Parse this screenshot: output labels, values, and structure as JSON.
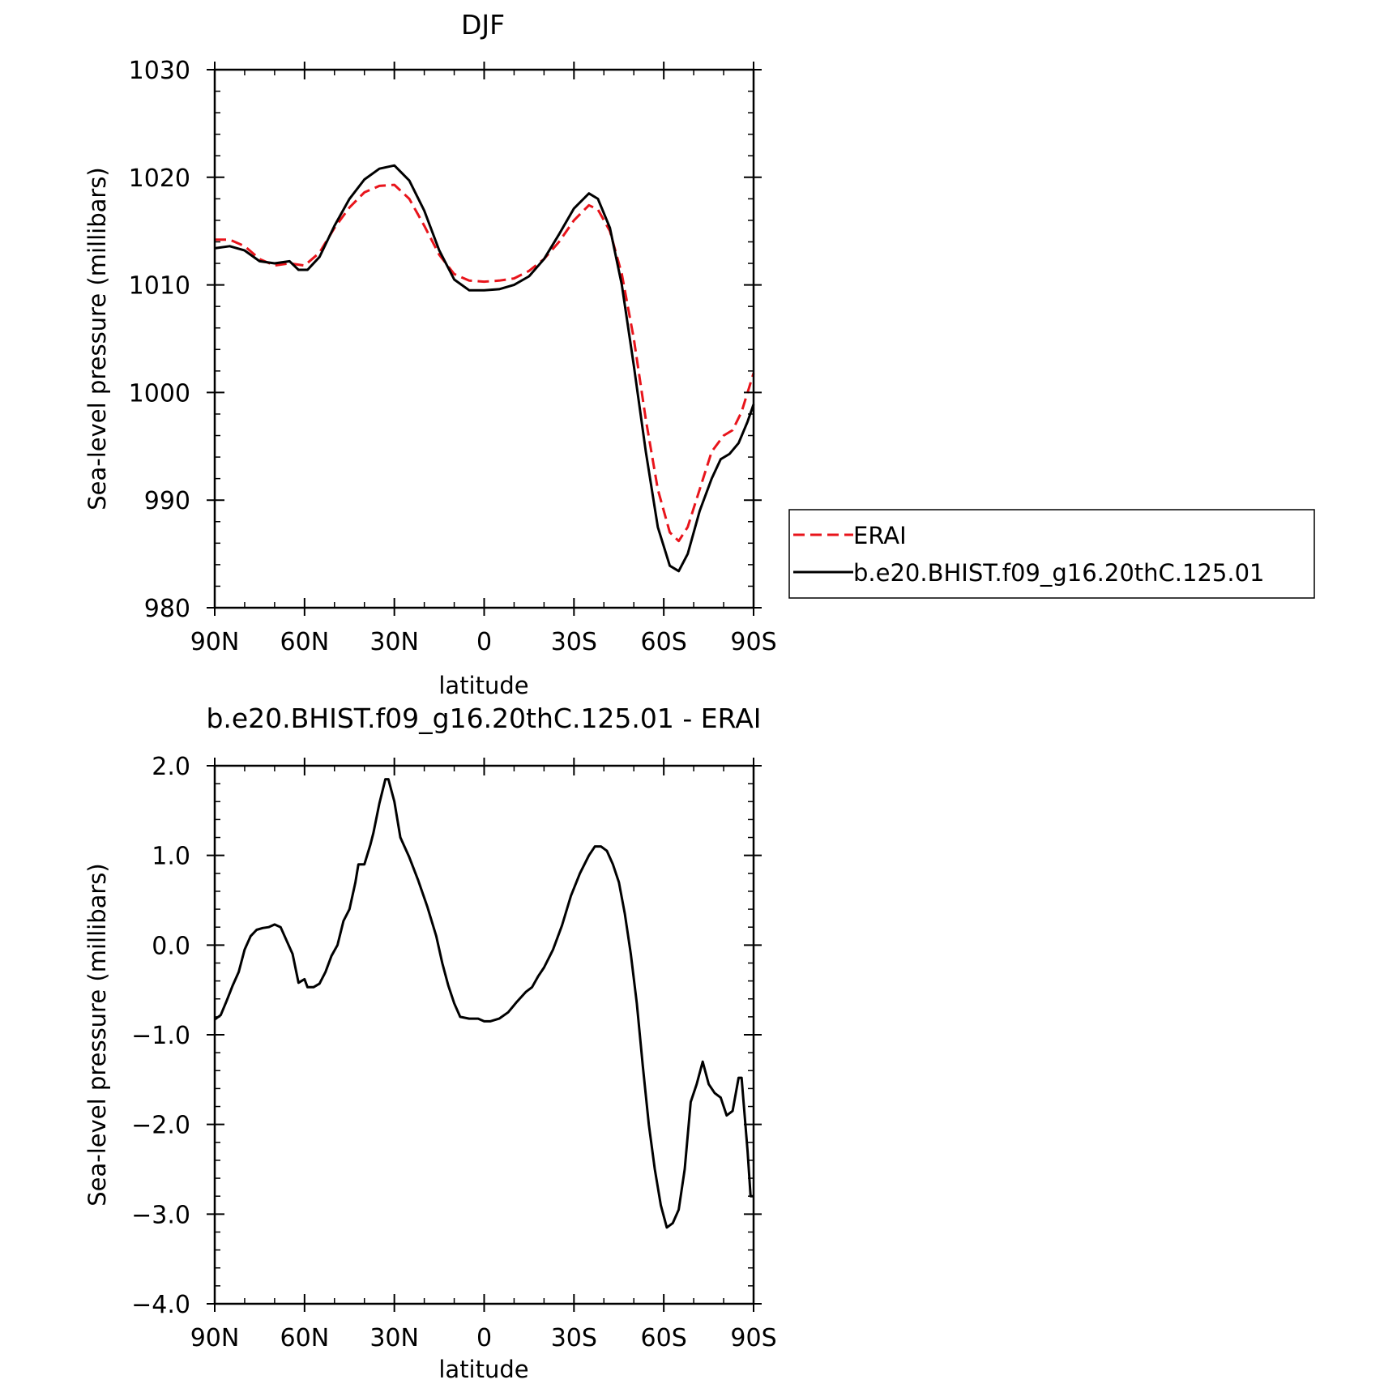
{
  "chart_data": [
    {
      "type": "line",
      "title": "DJF",
      "xlabel": "latitude",
      "ylabel": "Sea-level pressure (millibars)",
      "xlim": [
        90,
        -90
      ],
      "ylim": [
        980,
        1030
      ],
      "x_ticks": [
        90,
        60,
        30,
        0,
        -30,
        -60,
        -90
      ],
      "x_tick_labels": [
        "90N",
        "60N",
        "30N",
        "0",
        "30S",
        "60S",
        "90S"
      ],
      "y_ticks": [
        980,
        990,
        1000,
        1010,
        1020,
        1030
      ],
      "y_tick_labels": [
        "980",
        "990",
        "1000",
        "1010",
        "1020",
        "1030"
      ],
      "grid": false,
      "legend_position": "right",
      "series": [
        {
          "name": "ERAI",
          "color": "#e8141b",
          "dash": "dashed",
          "points": [
            [
              90,
              1014.2
            ],
            [
              85,
              1014.2
            ],
            [
              80,
              1013.6
            ],
            [
              75,
              1012.4
            ],
            [
              70,
              1011.8
            ],
            [
              65,
              1012.0
            ],
            [
              60,
              1011.8
            ],
            [
              55,
              1013.0
            ],
            [
              50,
              1015.3
            ],
            [
              45,
              1017.2
            ],
            [
              40,
              1018.6
            ],
            [
              35,
              1019.2
            ],
            [
              30,
              1019.3
            ],
            [
              25,
              1018.0
            ],
            [
              20,
              1015.5
            ],
            [
              15,
              1012.8
            ],
            [
              10,
              1011.0
            ],
            [
              5,
              1010.4
            ],
            [
              0,
              1010.3
            ],
            [
              -5,
              1010.4
            ],
            [
              -10,
              1010.6
            ],
            [
              -15,
              1011.3
            ],
            [
              -20,
              1012.4
            ],
            [
              -25,
              1014.0
            ],
            [
              -30,
              1016.0
            ],
            [
              -35,
              1017.4
            ],
            [
              -38,
              1017.0
            ],
            [
              -42,
              1015.0
            ],
            [
              -46,
              1011.0
            ],
            [
              -50,
              1005.0
            ],
            [
              -54,
              997.5
            ],
            [
              -58,
              991.0
            ],
            [
              -62,
              987.0
            ],
            [
              -65,
              986.2
            ],
            [
              -68,
              987.5
            ],
            [
              -72,
              991.0
            ],
            [
              -76,
              994.5
            ],
            [
              -80,
              996.0
            ],
            [
              -83,
              996.5
            ],
            [
              -86,
              998.2
            ],
            [
              -90,
              1001.8
            ]
          ]
        },
        {
          "name": "b.e20.BHIST.f09_g16.20thC.125.01",
          "color": "#000000",
          "dash": "solid",
          "points": [
            [
              90,
              1013.4
            ],
            [
              85,
              1013.6
            ],
            [
              80,
              1013.2
            ],
            [
              75,
              1012.2
            ],
            [
              70,
              1012.0
            ],
            [
              65,
              1012.2
            ],
            [
              62,
              1011.4
            ],
            [
              59,
              1011.4
            ],
            [
              55,
              1012.6
            ],
            [
              50,
              1015.5
            ],
            [
              45,
              1018.0
            ],
            [
              40,
              1019.8
            ],
            [
              35,
              1020.8
            ],
            [
              30,
              1021.1
            ],
            [
              25,
              1019.7
            ],
            [
              20,
              1016.9
            ],
            [
              15,
              1013.2
            ],
            [
              10,
              1010.5
            ],
            [
              5,
              1009.5
            ],
            [
              0,
              1009.5
            ],
            [
              -5,
              1009.6
            ],
            [
              -10,
              1010.0
            ],
            [
              -15,
              1010.8
            ],
            [
              -20,
              1012.4
            ],
            [
              -25,
              1014.7
            ],
            [
              -30,
              1017.1
            ],
            [
              -35,
              1018.5
            ],
            [
              -38,
              1018.0
            ],
            [
              -42,
              1015.3
            ],
            [
              -46,
              1010.0
            ],
            [
              -50,
              1002.5
            ],
            [
              -54,
              994.5
            ],
            [
              -58,
              987.5
            ],
            [
              -62,
              983.9
            ],
            [
              -65,
              983.4
            ],
            [
              -68,
              985.0
            ],
            [
              -72,
              989.0
            ],
            [
              -76,
              992.0
            ],
            [
              -79,
              993.8
            ],
            [
              -82,
              994.3
            ],
            [
              -85,
              995.3
            ],
            [
              -88,
              997.3
            ],
            [
              -90,
              998.9
            ]
          ]
        }
      ]
    },
    {
      "type": "line",
      "title": "b.e20.BHIST.f09_g16.20thC.125.01 - ERAI",
      "xlabel": "latitude",
      "ylabel": "Sea-level pressure (millibars)",
      "xlim": [
        90,
        -90
      ],
      "ylim": [
        -4.0,
        2.0
      ],
      "x_ticks": [
        90,
        60,
        30,
        0,
        -30,
        -60,
        -90
      ],
      "x_tick_labels": [
        "90N",
        "60N",
        "30N",
        "0",
        "30S",
        "60S",
        "90S"
      ],
      "y_ticks": [
        -4.0,
        -3.0,
        -2.0,
        -1.0,
        0.0,
        1.0,
        2.0
      ],
      "y_tick_labels": [
        "−4.0",
        "−3.0",
        "−2.0",
        "−1.0",
        "0.0",
        "1.0",
        "2.0"
      ],
      "grid": false,
      "series": [
        {
          "color": "#000000",
          "dash": "solid",
          "points": [
            [
              90,
              -0.83
            ],
            [
              88,
              -0.78
            ],
            [
              86,
              -0.62
            ],
            [
              84,
              -0.45
            ],
            [
              82,
              -0.3
            ],
            [
              80,
              -0.05
            ],
            [
              78,
              0.1
            ],
            [
              76,
              0.17
            ],
            [
              74,
              0.19
            ],
            [
              72,
              0.2
            ],
            [
              70,
              0.23
            ],
            [
              68,
              0.2
            ],
            [
              66,
              0.05
            ],
            [
              64,
              -0.1
            ],
            [
              62,
              -0.42
            ],
            [
              60,
              -0.38
            ],
            [
              59,
              -0.47
            ],
            [
              57,
              -0.47
            ],
            [
              55,
              -0.43
            ],
            [
              53,
              -0.3
            ],
            [
              51,
              -0.12
            ],
            [
              49,
              0.0
            ],
            [
              47,
              0.27
            ],
            [
              45,
              0.4
            ],
            [
              43,
              0.7
            ],
            [
              42,
              0.9
            ],
            [
              40,
              0.9
            ],
            [
              38,
              1.12
            ],
            [
              37,
              1.25
            ],
            [
              35,
              1.58
            ],
            [
              33,
              1.85
            ],
            [
              32,
              1.85
            ],
            [
              30,
              1.6
            ],
            [
              28,
              1.2
            ],
            [
              25,
              0.98
            ],
            [
              22,
              0.72
            ],
            [
              19,
              0.43
            ],
            [
              16,
              0.1
            ],
            [
              14,
              -0.2
            ],
            [
              12,
              -0.45
            ],
            [
              10,
              -0.65
            ],
            [
              8,
              -0.8
            ],
            [
              5,
              -0.82
            ],
            [
              2,
              -0.82
            ],
            [
              0,
              -0.85
            ],
            [
              -2,
              -0.85
            ],
            [
              -5,
              -0.82
            ],
            [
              -8,
              -0.75
            ],
            [
              -11,
              -0.63
            ],
            [
              -14,
              -0.52
            ],
            [
              -16,
              -0.47
            ],
            [
              -18,
              -0.35
            ],
            [
              -20,
              -0.25
            ],
            [
              -23,
              -0.05
            ],
            [
              -26,
              0.22
            ],
            [
              -29,
              0.55
            ],
            [
              -32,
              0.8
            ],
            [
              -35,
              1.0
            ],
            [
              -37,
              1.1
            ],
            [
              -39,
              1.1
            ],
            [
              -41,
              1.05
            ],
            [
              -43,
              0.9
            ],
            [
              -45,
              0.7
            ],
            [
              -47,
              0.35
            ],
            [
              -49,
              -0.1
            ],
            [
              -51,
              -0.65
            ],
            [
              -53,
              -1.35
            ],
            [
              -55,
              -2.0
            ],
            [
              -57,
              -2.5
            ],
            [
              -59,
              -2.9
            ],
            [
              -61,
              -3.15
            ],
            [
              -63,
              -3.1
            ],
            [
              -65,
              -2.95
            ],
            [
              -67,
              -2.5
            ],
            [
              -69,
              -1.75
            ],
            [
              -71,
              -1.55
            ],
            [
              -73,
              -1.3
            ],
            [
              -75,
              -1.55
            ],
            [
              -77,
              -1.65
            ],
            [
              -79,
              -1.7
            ],
            [
              -81,
              -1.9
            ],
            [
              -83,
              -1.85
            ],
            [
              -85,
              -1.48
            ],
            [
              -86,
              -1.48
            ],
            [
              -88,
              -2.3
            ],
            [
              -89,
              -2.8
            ],
            [
              -90,
              -2.8
            ]
          ]
        }
      ]
    }
  ]
}
